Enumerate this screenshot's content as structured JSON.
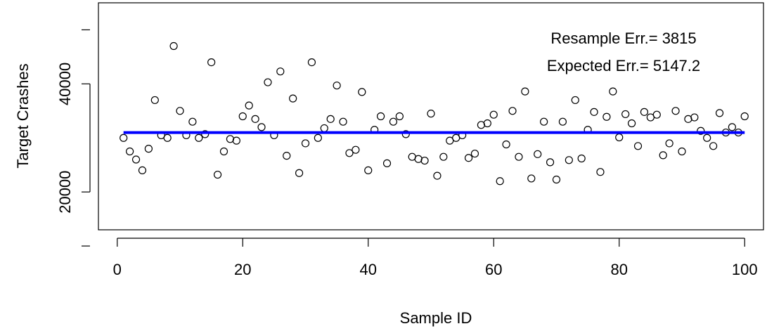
{
  "chart_data": {
    "type": "scatter",
    "title": "",
    "xlabel": "Sample ID",
    "ylabel": "Target Crashes",
    "xlim": [
      -3,
      103
    ],
    "ylim": [
      13000,
      55000
    ],
    "xticks": [
      0,
      20,
      40,
      60,
      80,
      100
    ],
    "yticks": [
      20000,
      40000
    ],
    "grid": false,
    "annotations": [
      "Resample Err.= 3815",
      "Expected Err.= 5147.2"
    ],
    "reference_line": {
      "y": 31000,
      "x_from": 1,
      "x_to": 100,
      "color": "#0000ff"
    },
    "series": [
      {
        "x": [
          1,
          2,
          3,
          4,
          5,
          6,
          7,
          8,
          9,
          10,
          11,
          12,
          13,
          14,
          15,
          16,
          17,
          18,
          19,
          20,
          21,
          22,
          23,
          24,
          25,
          26,
          27,
          28,
          29,
          30,
          31,
          32,
          33,
          34,
          35,
          36,
          37,
          38,
          39,
          40,
          41,
          42,
          43,
          44,
          45,
          46,
          47,
          48,
          49,
          50,
          51,
          52,
          53,
          54,
          55,
          56,
          57,
          58,
          59,
          60,
          61,
          62,
          63,
          64,
          65,
          66,
          67,
          68,
          69,
          70,
          71,
          72,
          73,
          74,
          75,
          76,
          77,
          78,
          79,
          80,
          81,
          82,
          83,
          84,
          85,
          86,
          87,
          88,
          89,
          90,
          91,
          92,
          93,
          94,
          95,
          96,
          97,
          98,
          99,
          100
        ],
        "y": [
          30000,
          27500,
          26000,
          24000,
          28000,
          37000,
          30500,
          30000,
          47000,
          35000,
          30500,
          33000,
          30000,
          30700,
          44000,
          23200,
          27500,
          29800,
          29500,
          34000,
          36000,
          33500,
          32000,
          40300,
          30500,
          42300,
          26700,
          37300,
          23500,
          29000,
          44000,
          30000,
          31800,
          33500,
          39700,
          33000,
          27200,
          27800,
          38500,
          24000,
          31500,
          34000,
          25300,
          33000,
          34000,
          30700,
          26500,
          26100,
          25800,
          34500,
          23000,
          26500,
          29500,
          30000,
          30500,
          26300,
          27100,
          32400,
          32700,
          34300,
          22000,
          28800,
          35000,
          26500,
          38600,
          22500,
          27000,
          33000,
          25500,
          22300,
          33000,
          25900,
          37000,
          26200,
          31500,
          34800,
          23700,
          33900,
          38600,
          30100,
          34400,
          32700,
          28500,
          34800,
          33800,
          34300,
          26800,
          29000,
          35000,
          27500,
          33500,
          33800,
          31300,
          30000,
          28500,
          34600,
          31000,
          32000,
          31000,
          34000
        ]
      }
    ]
  }
}
